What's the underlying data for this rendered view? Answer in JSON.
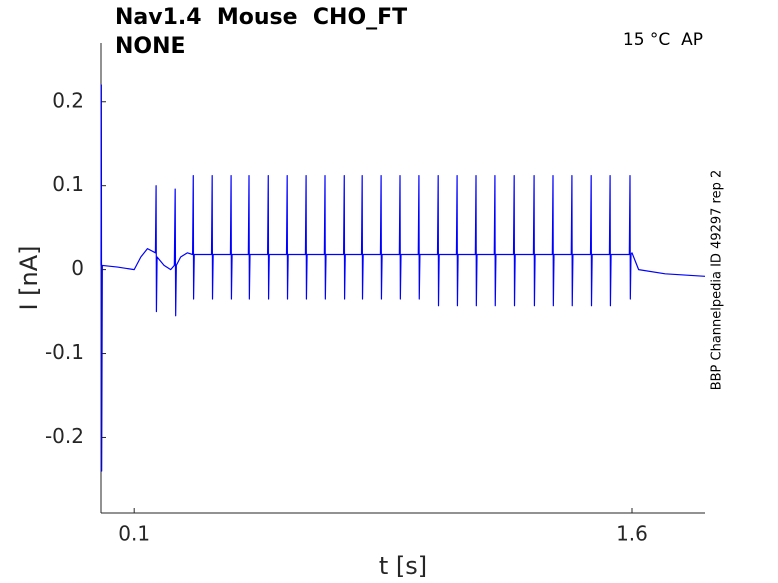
{
  "chart_data": {
    "type": "line",
    "title": "Nav1.4  Mouse  CHO_FT",
    "subtitle": "NONE",
    "annotation": "15 °C  AP",
    "side_note": "BBP Channelpedia ID 49297 rep 2",
    "xlabel": "t [s]",
    "ylabel": "I [nA]",
    "xlim": [
      0,
      1.82
    ],
    "ylim": [
      -0.29,
      0.27
    ],
    "xticks": [
      0.1,
      1.6
    ],
    "yticks": [
      -0.2,
      -0.1,
      0,
      0.1,
      0.2
    ],
    "grid": false,
    "series": [
      {
        "color": "#0000ff",
        "x": [
          0,
          0.001,
          0.002,
          0.004,
          0.05,
          0.1,
          0.12,
          0.14,
          0.164,
          0.166,
          0.167,
          0.169,
          0.19,
          0.21,
          0.221,
          0.2235,
          0.225,
          0.227,
          0.24,
          0.26,
          0.276,
          0.278,
          0.279,
          0.281,
          0.333,
          0.335,
          0.336,
          0.338,
          0.39,
          0.392,
          0.393,
          0.395,
          0.444,
          0.446,
          0.447,
          0.449,
          0.502,
          0.504,
          0.505,
          0.507,
          0.559,
          0.561,
          0.562,
          0.564,
          0.616,
          0.618,
          0.619,
          0.621,
          0.673,
          0.675,
          0.676,
          0.678,
          0.731,
          0.733,
          0.734,
          0.736,
          0.785,
          0.787,
          0.788,
          0.79,
          0.842,
          0.844,
          0.845,
          0.847,
          0.899,
          0.901,
          0.902,
          0.904,
          0.956,
          0.958,
          0.959,
          0.961,
          1.014,
          1.016,
          1.017,
          1.019,
          1.071,
          1.073,
          1.074,
          1.076,
          1.128,
          1.13,
          1.131,
          1.133,
          1.185,
          1.187,
          1.188,
          1.19,
          1.243,
          1.245,
          1.246,
          1.248,
          1.303,
          1.305,
          1.306,
          1.308,
          1.36,
          1.362,
          1.363,
          1.365,
          1.417,
          1.419,
          1.42,
          1.422,
          1.475,
          1.477,
          1.478,
          1.48,
          1.532,
          1.534,
          1.535,
          1.537,
          1.592,
          1.594,
          1.595,
          1.597,
          1.6,
          1.62,
          1.7,
          1.82
        ],
        "values": [
          0.005,
          0.22,
          -0.24,
          0.005,
          0.003,
          0,
          0.015,
          0.025,
          0.02,
          0.1,
          -0.05,
          0.015,
          0.005,
          0,
          0.005,
          0.096,
          -0.055,
          0.005,
          0.015,
          0.02,
          0.018,
          0.112,
          -0.035,
          0.018,
          0.018,
          0.112,
          -0.035,
          0.018,
          0.018,
          0.112,
          -0.035,
          0.018,
          0.018,
          0.112,
          -0.035,
          0.018,
          0.018,
          0.112,
          -0.035,
          0.018,
          0.018,
          0.112,
          -0.035,
          0.018,
          0.018,
          0.112,
          -0.035,
          0.018,
          0.018,
          0.112,
          -0.035,
          0.018,
          0.018,
          0.112,
          -0.035,
          0.018,
          0.018,
          0.112,
          -0.035,
          0.018,
          0.018,
          0.112,
          -0.035,
          0.018,
          0.018,
          0.112,
          -0.035,
          0.018,
          0.018,
          0.112,
          -0.035,
          0.018,
          0.018,
          0.112,
          -0.043,
          0.018,
          0.018,
          0.112,
          -0.043,
          0.018,
          0.018,
          0.112,
          -0.043,
          0.018,
          0.018,
          0.112,
          -0.043,
          0.018,
          0.018,
          0.112,
          -0.043,
          0.018,
          0.018,
          0.112,
          -0.043,
          0.018,
          0.018,
          0.112,
          -0.043,
          0.018,
          0.018,
          0.112,
          -0.043,
          0.018,
          0.018,
          0.112,
          -0.043,
          0.018,
          0.018,
          0.112,
          -0.043,
          0.018,
          0.018,
          0.112,
          -0.035,
          0.018,
          0.02,
          0,
          -0.005,
          -0.008
        ]
      }
    ]
  }
}
